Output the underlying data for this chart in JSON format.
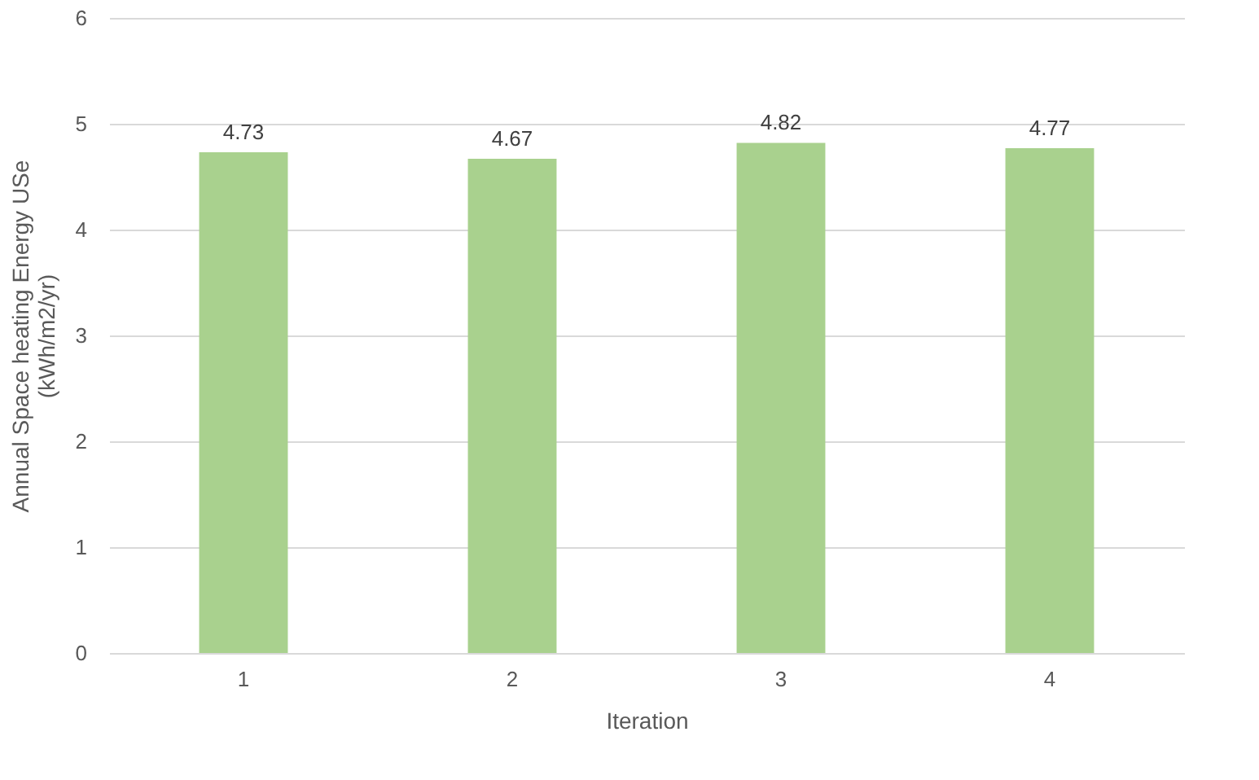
{
  "chart_data": {
    "type": "bar",
    "xlabel": "Iteration",
    "ylabel": "Annual Space heating Energy USe (kWh/m2/yr)",
    "categories": [
      "1",
      "2",
      "3",
      "4"
    ],
    "values": [
      4.73,
      4.67,
      4.82,
      4.77
    ],
    "color": "#a9d18e",
    "ylim": [
      0,
      6
    ],
    "yticks": [
      0,
      1,
      2,
      3,
      4,
      5,
      6
    ],
    "grid": "y",
    "data_labels": true
  }
}
